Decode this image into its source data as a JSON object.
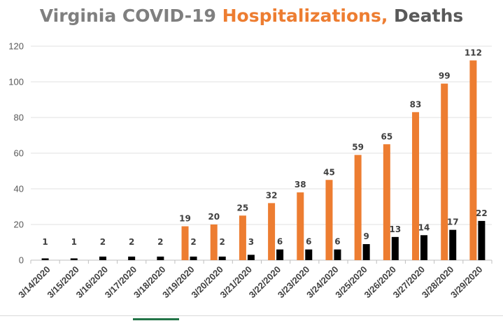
{
  "title": {
    "part1": "Virginia COVID-19",
    "part2": "Hospitalizations,",
    "part3": "Deaths",
    "part1_color": "#7f7f7f",
    "part2_color": "#ed7d31",
    "part3_color": "#595959"
  },
  "chart_data": {
    "type": "bar",
    "categories": [
      "3/14/2020",
      "3/15/2020",
      "3/16/2020",
      "3/17/2020",
      "3/18/2020",
      "3/19/2020",
      "3/20/2020",
      "3/21/2020",
      "3/22/2020",
      "3/23/2020",
      "3/24/2020",
      "3/25/2020",
      "3/26/2020",
      "3/27/2020",
      "3/28/2020",
      "3/29/2020"
    ],
    "series": [
      {
        "name": "Hospitalizations",
        "color": "#ed7d31",
        "values": [
          null,
          null,
          null,
          null,
          null,
          19,
          20,
          25,
          32,
          38,
          45,
          59,
          65,
          83,
          99,
          112
        ]
      },
      {
        "name": "Deaths",
        "color": "#000000",
        "values": [
          1,
          1,
          2,
          2,
          2,
          2,
          2,
          3,
          6,
          6,
          6,
          9,
          13,
          14,
          17,
          22
        ]
      }
    ],
    "ylim": [
      0,
      120
    ],
    "yticks": [
      0,
      20,
      40,
      60,
      80,
      100,
      120
    ],
    "grid": true,
    "xlabel": "",
    "ylabel": ""
  }
}
